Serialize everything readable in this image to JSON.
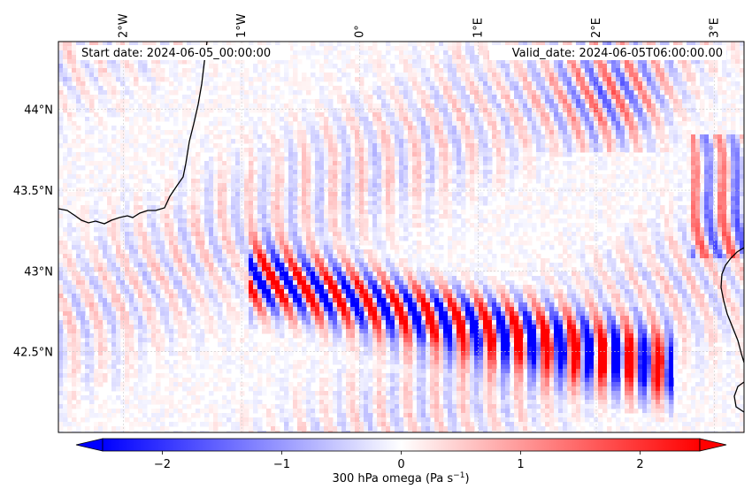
{
  "header": {
    "start_date": "Start date: 2024-06-05_00:00:00",
    "valid_date": "Valid_date: 2024-06-05T06:00:00.00"
  },
  "map": {
    "longitude_labels": [
      {
        "lon": -2,
        "label": "2°W"
      },
      {
        "lon": -1,
        "label": "1°W"
      },
      {
        "lon": 0,
        "label": "0°"
      },
      {
        "lon": 1,
        "label": "1°E"
      },
      {
        "lon": 2,
        "label": "2°E"
      },
      {
        "lon": 3,
        "label": "3°E"
      }
    ],
    "latitude_labels": [
      {
        "lat": 44,
        "label": "44°N"
      },
      {
        "lat": 43.5,
        "label": "43.5°N"
      },
      {
        "lat": 43,
        "label": "43°N"
      },
      {
        "lat": 42.5,
        "label": "42.5°N"
      }
    ],
    "extent": {
      "lon_min": -2.55,
      "lon_max": 3.25,
      "lat_min": 42.0,
      "lat_max": 44.42
    },
    "field": "300 hPa omega",
    "grid": true,
    "coastline_color": "#000000"
  },
  "colorbar": {
    "min": -2.5,
    "max": 2.5,
    "ticks": [
      {
        "value": -2,
        "label": "−2"
      },
      {
        "value": -1,
        "label": "−1"
      },
      {
        "value": 0,
        "label": "0"
      },
      {
        "value": 1,
        "label": "1"
      },
      {
        "value": 2,
        "label": "2"
      }
    ],
    "label_main": "300 hPa omega (Pa s",
    "label_sup": "−1",
    "label_end": ")",
    "color_min": "#0000ff",
    "color_mid": "#ffffff",
    "color_max": "#ff0000",
    "extend": "both"
  }
}
